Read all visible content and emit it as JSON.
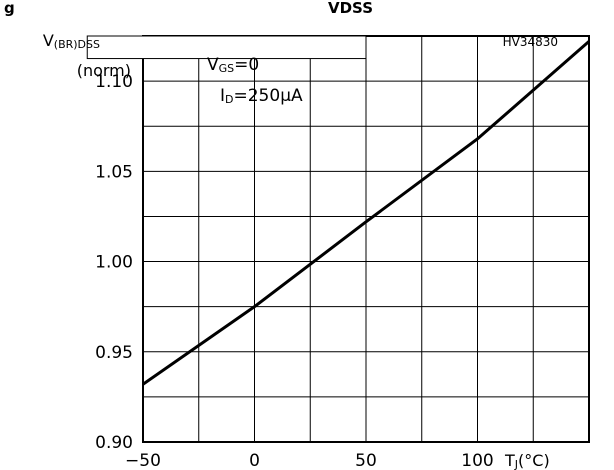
{
  "figure_id": "HV34830",
  "partial_title": {
    "left": "g",
    "sub": "VDSS"
  },
  "chart_data": {
    "type": "line",
    "ylabel": {
      "main": "V",
      "sub": "(BR)DSS",
      "unit": "(norm)"
    },
    "xlabel": {
      "main": "T",
      "sub": "J",
      "unit": "(°C)"
    },
    "conditions": [
      {
        "main": "V",
        "sub": "GS",
        "rest": "=0"
      },
      {
        "main": "I",
        "sub": "D",
        "rest": "=250μA"
      }
    ],
    "xlim": [
      -50,
      150
    ],
    "ylim": [
      0.9,
      1.125
    ],
    "grid": true,
    "x_ticks": [
      -50,
      0,
      50,
      100
    ],
    "x_tick_labels": [
      "−50",
      "0",
      "50",
      "100"
    ],
    "y_ticks": [
      0.9,
      0.95,
      1.0,
      1.05,
      1.1
    ],
    "y_tick_labels": [
      "0.90",
      "0.95",
      "1.00",
      "1.05",
      "1.10"
    ],
    "series": [
      {
        "x": [
          -50,
          0,
          50,
          100,
          150
        ],
        "y": [
          0.932,
          0.975,
          1.022,
          1.068,
          1.122
        ]
      }
    ]
  }
}
